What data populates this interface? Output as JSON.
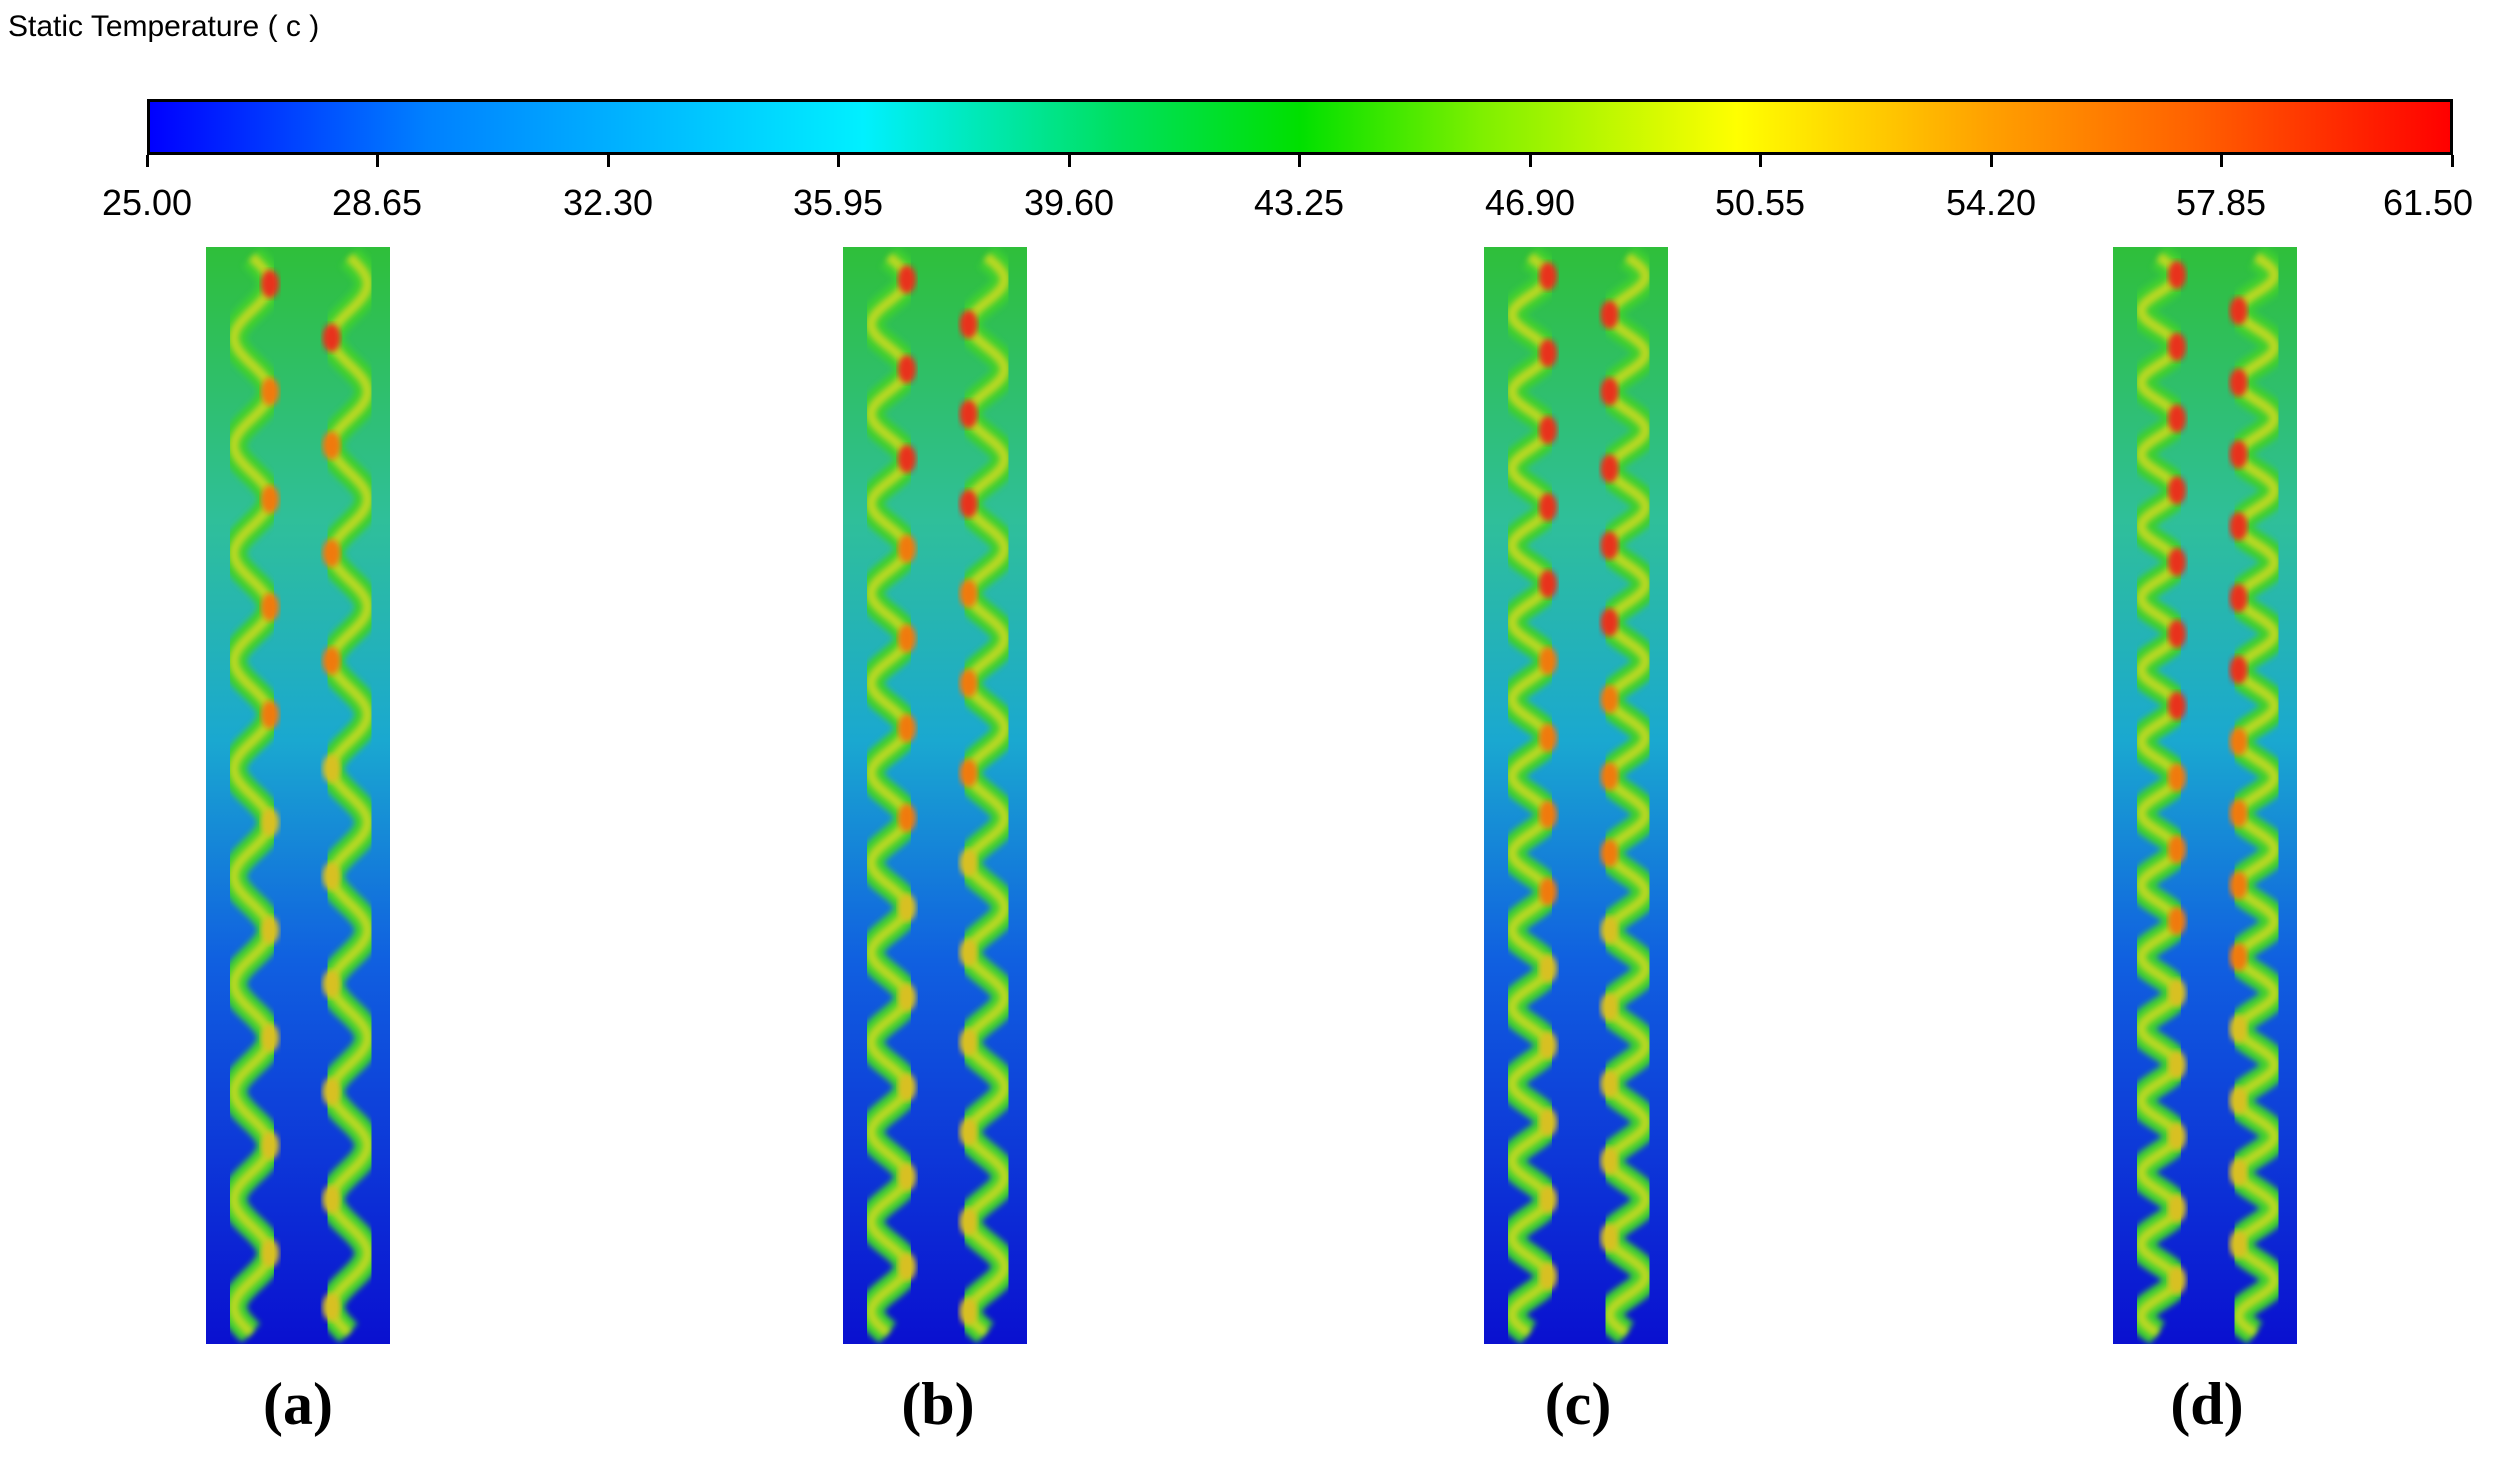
{
  "colorbar": {
    "title": "Static Temperature ( c )",
    "ticks": [
      "25.00",
      "28.65",
      "32.30",
      "35.95",
      "39.60",
      "43.25",
      "46.90",
      "50.55",
      "54.20",
      "57.85",
      "61.50"
    ],
    "min": 25.0,
    "max": 61.5,
    "colors": [
      "#0000ff",
      "#0080ff",
      "#00f0ff",
      "#00e000",
      "#ffff00",
      "#ff6000",
      "#ff0000"
    ]
  },
  "panels": [
    {
      "label": "(a)",
      "waves": 10
    },
    {
      "label": "(b)",
      "waves": 12
    },
    {
      "label": "(c)",
      "waves": 14
    },
    {
      "label": "(d)",
      "waves": 15
    }
  ]
}
